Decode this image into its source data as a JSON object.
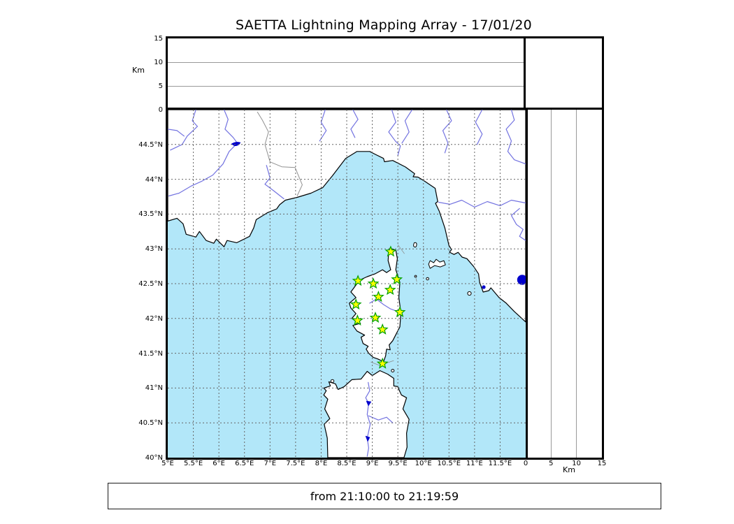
{
  "title": "SAETTA Lightning Mapping Array - 17/01/20",
  "footer": {
    "time_range": "from 21:10:00 to 21:19:59"
  },
  "axes": {
    "altitude_label": "Km",
    "altitude_max": 15,
    "altitude_ticks": [
      {
        "value": 0,
        "label": "0"
      },
      {
        "value": 5,
        "label": "5"
      },
      {
        "value": 10,
        "label": "10"
      },
      {
        "value": 15,
        "label": "15"
      }
    ],
    "longitude_ticks": [
      {
        "value": 5,
        "label": "5°E"
      },
      {
        "value": 5.5,
        "label": "5.5°E"
      },
      {
        "value": 6,
        "label": "6°E"
      },
      {
        "value": 6.5,
        "label": "6.5°E"
      },
      {
        "value": 7,
        "label": "7°E"
      },
      {
        "value": 7.5,
        "label": "7.5°E"
      },
      {
        "value": 8,
        "label": "8°E"
      },
      {
        "value": 8.5,
        "label": "8.5°E"
      },
      {
        "value": 9,
        "label": "9°E"
      },
      {
        "value": 9.5,
        "label": "9.5°E"
      },
      {
        "value": 10,
        "label": "10°E"
      },
      {
        "value": 10.5,
        "label": "10.5°E"
      },
      {
        "value": 11,
        "label": "11°E"
      },
      {
        "value": 11.5,
        "label": "11.5°E"
      }
    ],
    "latitude_ticks": [
      {
        "value": 40,
        "label": "40°N"
      },
      {
        "value": 40.5,
        "label": "40.5°N"
      },
      {
        "value": 41,
        "label": "41°N"
      },
      {
        "value": 41.5,
        "label": "41.5°N"
      },
      {
        "value": 42,
        "label": "42°N"
      },
      {
        "value": 42.5,
        "label": "42.5°N"
      },
      {
        "value": 43,
        "label": "43°N"
      },
      {
        "value": 43.5,
        "label": "43.5°N"
      },
      {
        "value": 44,
        "label": "44°N"
      },
      {
        "value": 44.5,
        "label": "44.5°N"
      }
    ],
    "lon_range": [
      5,
      12
    ],
    "lat_range": [
      40,
      45
    ],
    "grid_step_deg": 0.5
  },
  "stations": [
    {
      "lon": 9.36,
      "lat": 42.96
    },
    {
      "lon": 8.72,
      "lat": 42.54
    },
    {
      "lon": 9.02,
      "lat": 42.5
    },
    {
      "lon": 9.48,
      "lat": 42.56
    },
    {
      "lon": 9.35,
      "lat": 42.41
    },
    {
      "lon": 9.12,
      "lat": 42.31
    },
    {
      "lon": 8.68,
      "lat": 42.2
    },
    {
      "lon": 9.54,
      "lat": 42.09
    },
    {
      "lon": 8.71,
      "lat": 41.97
    },
    {
      "lon": 9.06,
      "lat": 42.01
    },
    {
      "lon": 9.2,
      "lat": 41.84
    },
    {
      "lon": 9.2,
      "lat": 41.35
    }
  ],
  "colors": {
    "sea": "#b2e7f9",
    "land": "#ffffff",
    "coast": "#000000",
    "river": "#7373e0",
    "lake": "#0000cc",
    "border_line": "#909090",
    "grid": "#666666",
    "panel_grid": "#999999",
    "star_fill": "#ffff00",
    "star_stroke": "#00a000"
  },
  "chart_data": {
    "type": "scatter",
    "title": "SAETTA Lightning Mapping Array - 17/01/20",
    "date": "17/01/20",
    "time_window": {
      "from": "21:10:00",
      "to": "21:19:59"
    },
    "panels": [
      {
        "name": "altitude_vs_longitude",
        "position": "top",
        "ylabel": "Km",
        "ylim": [
          0,
          15
        ],
        "yticks": [
          0,
          5,
          10,
          15
        ],
        "grid": "horizontal solid at 5 and 10",
        "points": []
      },
      {
        "name": "map_longitude_latitude",
        "position": "main",
        "xlim": [
          5,
          12
        ],
        "ylim": [
          40,
          45
        ],
        "xtick_labels": [
          "5°E",
          "5.5°E",
          "6°E",
          "6.5°E",
          "7°E",
          "7.5°E",
          "8°E",
          "8.5°E",
          "9°E",
          "9.5°E",
          "10°E",
          "10.5°E",
          "11°E",
          "11.5°E"
        ],
        "ytick_labels": [
          "40°N",
          "40.5°N",
          "41°N",
          "41.5°N",
          "42°N",
          "42.5°N",
          "43°N",
          "43.5°N",
          "44°N",
          "44.5°N"
        ],
        "grid": "dashed every 0.5 degree",
        "basemap": "western Mediterranean: S France, NW Italy, Corsica, N Sardinia, Elba",
        "station_markers": "green-edged yellow stars (SAETTA LMA stations on Corsica)",
        "stations_lon_lat": [
          [
            9.36,
            42.96
          ],
          [
            8.72,
            42.54
          ],
          [
            9.02,
            42.5
          ],
          [
            9.48,
            42.56
          ],
          [
            9.35,
            42.41
          ],
          [
            9.12,
            42.31
          ],
          [
            8.68,
            42.2
          ],
          [
            9.54,
            42.09
          ],
          [
            8.71,
            41.97
          ],
          [
            9.06,
            42.01
          ],
          [
            9.2,
            41.84
          ],
          [
            9.2,
            41.35
          ]
        ],
        "lightning_points": []
      },
      {
        "name": "altitude_vs_latitude",
        "position": "right",
        "xlabel": "Km",
        "xlim": [
          0,
          15
        ],
        "xticks": [
          0,
          5,
          10,
          15
        ],
        "grid": "vertical solid at 5 and 10",
        "points": []
      }
    ],
    "legend_position": "none",
    "annotation": "from 21:10:00 to 21:19:59"
  }
}
